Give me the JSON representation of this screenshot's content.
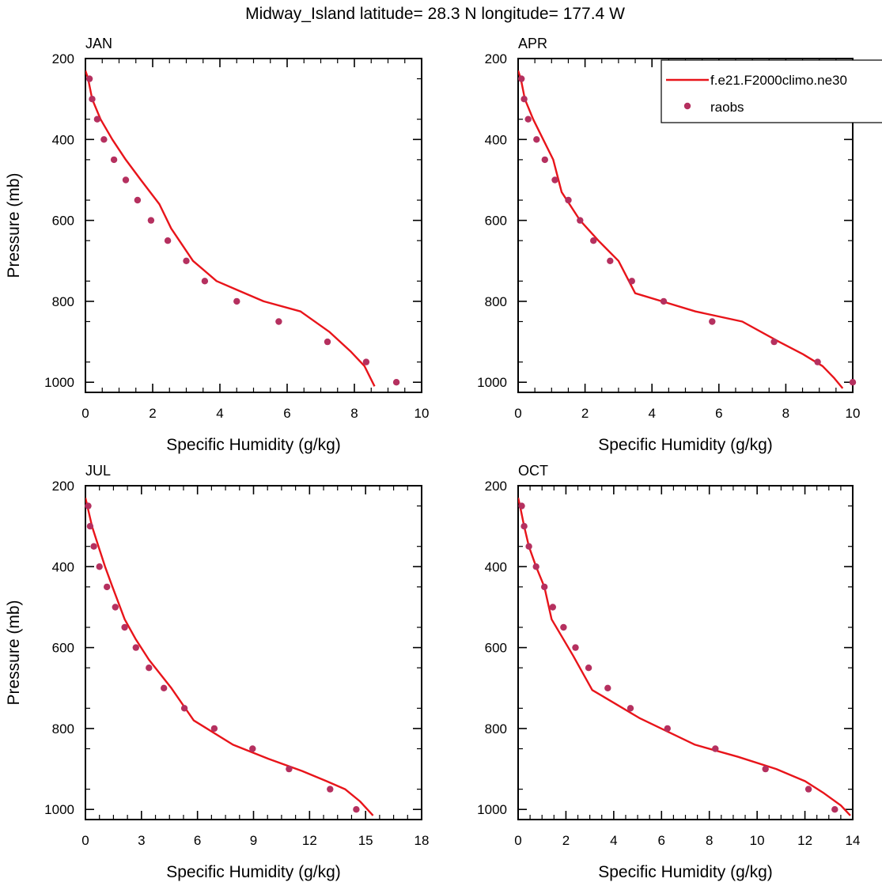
{
  "title": "Midway_Island  latitude= 28.3 N longitude= 177.4 W",
  "legend": {
    "model_label": "f.e21.F2000climo.ne30",
    "obs_label": "raobs"
  },
  "colors": {
    "model_line": "#e8141a",
    "obs_marker": "#b5305f",
    "axes": "#000000"
  },
  "chart_data": [
    {
      "type": "line",
      "panel": "JAN",
      "xlabel": "Specific Humidity (g/kg)",
      "ylabel": "Pressure (mb)",
      "xlim": [
        0,
        10
      ],
      "ylim": [
        1025,
        200
      ],
      "x_ticks": [
        "0",
        "2",
        "4",
        "6",
        "8",
        "10"
      ],
      "y_ticks": [
        "200",
        "400",
        "600",
        "800",
        "1000"
      ],
      "series": [
        {
          "x": [
            0.0,
            0.08,
            0.2,
            0.45,
            0.8,
            1.2,
            1.65,
            2.2,
            2.55,
            3.2,
            3.9,
            4.6,
            5.3,
            6.4,
            7.25,
            7.9,
            8.3,
            8.6
          ],
          "y": [
            230,
            250,
            300,
            350,
            400,
            450,
            500,
            560,
            620,
            700,
            750,
            775,
            800,
            825,
            875,
            925,
            960,
            1010
          ]
        },
        {
          "name": "raobs",
          "x": [
            0.12,
            0.2,
            0.35,
            0.55,
            0.85,
            1.2,
            1.55,
            1.95,
            2.45,
            3.0,
            3.55,
            4.5,
            5.75,
            7.2,
            8.35,
            9.25
          ],
          "y": [
            250,
            300,
            350,
            400,
            450,
            500,
            550,
            600,
            650,
            700,
            750,
            800,
            850,
            900,
            950,
            1000
          ]
        }
      ]
    },
    {
      "type": "line",
      "panel": "APR",
      "xlabel": "Specific Humidity (g/kg)",
      "ylabel": "",
      "xlim": [
        0,
        10
      ],
      "ylim": [
        1025,
        200
      ],
      "x_ticks": [
        "0",
        "2",
        "4",
        "6",
        "8",
        "10"
      ],
      "y_ticks": [
        "200",
        "400",
        "600",
        "800",
        "1000"
      ],
      "series": [
        {
          "x": [
            0.0,
            0.08,
            0.2,
            0.45,
            0.75,
            1.05,
            1.3,
            1.85,
            2.4,
            3.0,
            3.5,
            4.3,
            5.3,
            6.7,
            7.8,
            8.5,
            9.1,
            9.45,
            9.7
          ],
          "y": [
            230,
            250,
            300,
            350,
            400,
            450,
            530,
            600,
            650,
            700,
            780,
            800,
            825,
            850,
            900,
            930,
            960,
            990,
            1015
          ]
        },
        {
          "name": "raobs",
          "x": [
            0.1,
            0.18,
            0.3,
            0.55,
            0.8,
            1.1,
            1.5,
            1.85,
            2.25,
            2.75,
            3.4,
            4.35,
            5.8,
            7.65,
            8.95,
            10.0
          ],
          "y": [
            250,
            300,
            350,
            400,
            450,
            500,
            550,
            600,
            650,
            700,
            750,
            800,
            850,
            900,
            950,
            1000
          ]
        }
      ]
    },
    {
      "type": "line",
      "panel": "JUL",
      "xlabel": "Specific Humidity (g/kg)",
      "ylabel": "Pressure (mb)",
      "xlim": [
        0,
        18
      ],
      "ylim": [
        1025,
        200
      ],
      "x_ticks": [
        "0",
        "3",
        "6",
        "9",
        "12",
        "15",
        "18"
      ],
      "y_ticks": [
        "200",
        "400",
        "600",
        "800",
        "1000"
      ],
      "series": [
        {
          "x": [
            0.0,
            0.1,
            0.35,
            0.7,
            1.05,
            1.45,
            2.1,
            2.7,
            3.4,
            4.6,
            5.8,
            7.9,
            9.8,
            11.6,
            12.9,
            13.9,
            14.7,
            15.4
          ],
          "y": [
            230,
            250,
            300,
            350,
            400,
            450,
            530,
            580,
            630,
            700,
            780,
            840,
            875,
            905,
            930,
            950,
            980,
            1015
          ]
        },
        {
          "name": "raobs",
          "x": [
            0.15,
            0.25,
            0.45,
            0.75,
            1.15,
            1.6,
            2.1,
            2.7,
            3.4,
            4.2,
            5.3,
            6.9,
            8.95,
            10.9,
            13.1,
            14.5
          ],
          "y": [
            250,
            300,
            350,
            400,
            450,
            500,
            550,
            600,
            650,
            700,
            750,
            800,
            850,
            900,
            950,
            1000
          ]
        }
      ]
    },
    {
      "type": "line",
      "panel": "OCT",
      "xlabel": "Specific Humidity (g/kg)",
      "ylabel": "",
      "xlim": [
        0,
        14
      ],
      "ylim": [
        1025,
        200
      ],
      "x_ticks": [
        "0",
        "2",
        "4",
        "6",
        "8",
        "10",
        "12",
        "14"
      ],
      "y_ticks": [
        "200",
        "400",
        "600",
        "800",
        "1000"
      ],
      "series": [
        {
          "x": [
            0.0,
            0.08,
            0.25,
            0.45,
            0.75,
            1.1,
            1.4,
            2.3,
            3.1,
            4.1,
            5.1,
            7.4,
            9.2,
            10.8,
            12.0,
            12.8,
            13.5,
            13.9
          ],
          "y": [
            230,
            250,
            300,
            350,
            400,
            450,
            530,
            620,
            705,
            740,
            775,
            840,
            870,
            900,
            930,
            960,
            990,
            1015
          ]
        },
        {
          "name": "raobs",
          "x": [
            0.15,
            0.25,
            0.45,
            0.75,
            1.1,
            1.45,
            1.9,
            2.4,
            2.95,
            3.75,
            4.7,
            6.25,
            8.25,
            10.35,
            12.15,
            13.25
          ],
          "y": [
            250,
            300,
            350,
            400,
            450,
            500,
            550,
            600,
            650,
            700,
            750,
            800,
            850,
            900,
            950,
            1000
          ]
        }
      ]
    }
  ]
}
